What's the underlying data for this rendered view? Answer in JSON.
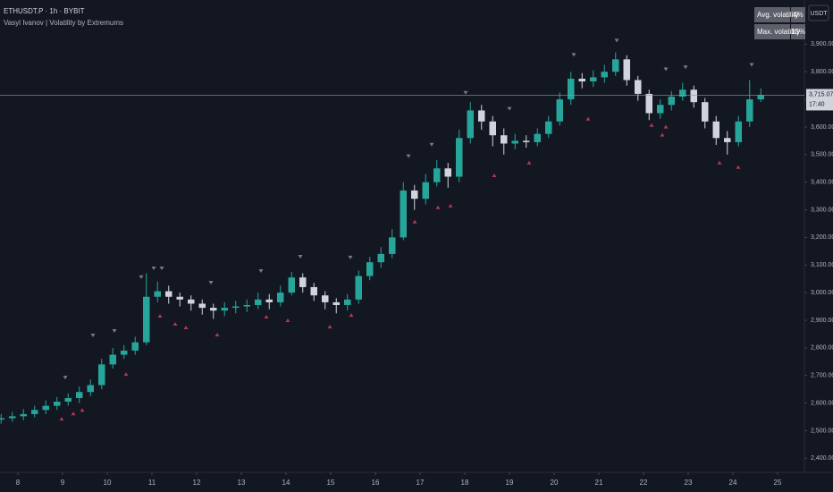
{
  "header": {
    "symbol": "ETHUSDT.P · 1h · BYBIT",
    "indicator": "Vasyl Ivanov | Volatility by Extremums",
    "currency": "USDT"
  },
  "volatility_table": {
    "rows": [
      [
        "Avg. volatility",
        "4%"
      ],
      [
        "Max. volatility",
        "13%"
      ]
    ]
  },
  "chart_data": {
    "type": "candlestick",
    "up_color": "#26a69a",
    "down_color": "#d1d4dc",
    "xlim": [
      7.6,
      25.6
    ],
    "ylim": [
      2375,
      4060
    ],
    "xticks": [
      8,
      9,
      10,
      11,
      12,
      13,
      14,
      15,
      16,
      17,
      18,
      19,
      20,
      21,
      22,
      23,
      24,
      25
    ],
    "yticks": [
      {
        "value": 3900,
        "label": "3,900.00"
      },
      {
        "value": 3800,
        "label": "3,800.00"
      },
      {
        "value": 3700,
        "label": "3,700.00"
      },
      {
        "value": 3600,
        "label": "3,600.00"
      },
      {
        "value": 3500,
        "label": "3,500.00"
      },
      {
        "value": 3400,
        "label": "3,400.00"
      },
      {
        "value": 3300,
        "label": "3,300.00"
      },
      {
        "value": 3200,
        "label": "3,200.00"
      },
      {
        "value": 3100,
        "label": "3,100.00"
      },
      {
        "value": 3000,
        "label": "3,000.00"
      },
      {
        "value": 2900,
        "label": "2,900.00"
      },
      {
        "value": 2800,
        "label": "2,800.00"
      },
      {
        "value": 2700,
        "label": "2,700.00"
      },
      {
        "value": 2600,
        "label": "2,600.00"
      },
      {
        "value": 2500,
        "label": "2,500.00"
      },
      {
        "value": 2400,
        "label": "2,400.00"
      }
    ],
    "x": [
      7.625,
      7.875,
      8.125,
      8.375,
      8.625,
      8.875,
      9.125,
      9.375,
      9.625,
      9.875,
      10.125,
      10.375,
      10.625,
      10.875,
      11.125,
      11.375,
      11.625,
      11.875,
      12.125,
      12.375,
      12.625,
      12.875,
      13.125,
      13.375,
      13.625,
      13.875,
      14.125,
      14.375,
      14.625,
      14.875,
      15.125,
      15.375,
      15.625,
      15.875,
      16.125,
      16.375,
      16.625,
      16.875,
      17.125,
      17.375,
      17.625,
      17.875,
      18.125,
      18.375,
      18.625,
      18.875,
      19.125,
      19.375,
      19.625,
      19.875,
      20.125,
      20.375,
      20.625,
      20.875,
      21.125,
      21.375,
      21.625,
      21.875,
      22.125,
      22.375,
      22.625,
      22.875,
      23.125,
      23.375,
      23.625,
      23.875,
      24.125,
      24.375,
      24.625
    ],
    "open": [
      2540,
      2545,
      2552,
      2560,
      2575,
      2590,
      2605,
      2618,
      2640,
      2665,
      2740,
      2775,
      2790,
      2820,
      2985,
      3005,
      2985,
      2975,
      2960,
      2945,
      2935,
      2945,
      2950,
      2955,
      2975,
      2965,
      3000,
      3055,
      3020,
      2990,
      2965,
      2955,
      2975,
      3060,
      3110,
      3140,
      3200,
      3370,
      3340,
      3400,
      3450,
      3420,
      3560,
      3660,
      3620,
      3570,
      3540,
      3550,
      3545,
      3575,
      3620,
      3700,
      3775,
      3765,
      3780,
      3800,
      3845,
      3770,
      3720,
      3650,
      3680,
      3710,
      3735,
      3690,
      3620,
      3560,
      3545,
      3620,
      3700
    ],
    "high": [
      2560,
      2568,
      2578,
      2590,
      2610,
      2622,
      2635,
      2660,
      2685,
      2760,
      2800,
      2810,
      2840,
      3070,
      3040,
      3025,
      3000,
      2990,
      2975,
      2960,
      2965,
      2970,
      2975,
      3000,
      2995,
      3025,
      3075,
      3070,
      3035,
      3005,
      2980,
      2995,
      3080,
      3130,
      3165,
      3230,
      3400,
      3390,
      3430,
      3480,
      3470,
      3590,
      3690,
      3680,
      3640,
      3595,
      3575,
      3570,
      3595,
      3640,
      3725,
      3800,
      3795,
      3805,
      3825,
      3870,
      3860,
      3785,
      3735,
      3700,
      3730,
      3760,
      3750,
      3705,
      3640,
      3585,
      3640,
      3770,
      3740
    ],
    "low": [
      2525,
      2532,
      2538,
      2548,
      2560,
      2575,
      2590,
      2600,
      2625,
      2650,
      2725,
      2760,
      2775,
      2810,
      2965,
      2960,
      2950,
      2935,
      2920,
      2905,
      2915,
      2925,
      2930,
      2940,
      2940,
      2950,
      2990,
      3000,
      2970,
      2940,
      2925,
      2935,
      2960,
      3045,
      3090,
      3125,
      3190,
      3300,
      3320,
      3385,
      3380,
      3400,
      3540,
      3590,
      3530,
      3500,
      3520,
      3525,
      3530,
      3560,
      3605,
      3680,
      3740,
      3745,
      3760,
      3785,
      3750,
      3695,
      3625,
      3630,
      3660,
      3695,
      3670,
      3595,
      3535,
      3500,
      3530,
      3600,
      3690
    ],
    "close": [
      2545,
      2552,
      2560,
      2575,
      2590,
      2605,
      2618,
      2640,
      2665,
      2740,
      2775,
      2790,
      2820,
      2985,
      3005,
      2985,
      2975,
      2960,
      2945,
      2935,
      2945,
      2950,
      2955,
      2975,
      2965,
      3000,
      3055,
      3020,
      2990,
      2965,
      2955,
      2975,
      3060,
      3110,
      3140,
      3200,
      3370,
      3340,
      3400,
      3450,
      3420,
      3560,
      3660,
      3620,
      3570,
      3540,
      3550,
      3545,
      3575,
      3620,
      3700,
      3775,
      3765,
      3780,
      3800,
      3845,
      3770,
      3720,
      3650,
      3680,
      3710,
      3735,
      3690,
      3620,
      3560,
      3545,
      3620,
      3700,
      3715
    ],
    "high_markers": {
      "color": "#787b86",
      "x": [
        9.06,
        9.68,
        10.16,
        10.76,
        11.04,
        11.22,
        12.32,
        13.44,
        14.32,
        15.44,
        16.74,
        17.26,
        18.02,
        19.0,
        20.44,
        21.4,
        22.5,
        22.94,
        24.42
      ],
      "y": [
        2692,
        2845,
        2861,
        3056,
        3088,
        3088,
        3036,
        3078,
        3130,
        3127,
        3494,
        3536,
        3724,
        3666,
        3861,
        3913,
        3809,
        3816,
        3825
      ]
    },
    "low_markers": {
      "color": "#b2384f",
      "x": [
        8.98,
        9.24,
        9.44,
        10.42,
        11.18,
        11.52,
        11.76,
        12.46,
        13.56,
        14.04,
        14.98,
        15.46,
        16.88,
        17.4,
        17.68,
        18.66,
        19.44,
        20.76,
        22.18,
        22.42,
        22.5,
        23.7,
        24.12
      ],
      "y": [
        2543,
        2562,
        2575,
        2705,
        2916,
        2887,
        2874,
        2848,
        2913,
        2900,
        2877,
        2919,
        3257,
        3309,
        3315,
        3425,
        3471,
        3630,
        3607,
        3572,
        3601,
        3471,
        3455
      ]
    },
    "last_price": {
      "value": 3715.07,
      "label": "3,715.07",
      "countdown": "17:40"
    }
  }
}
